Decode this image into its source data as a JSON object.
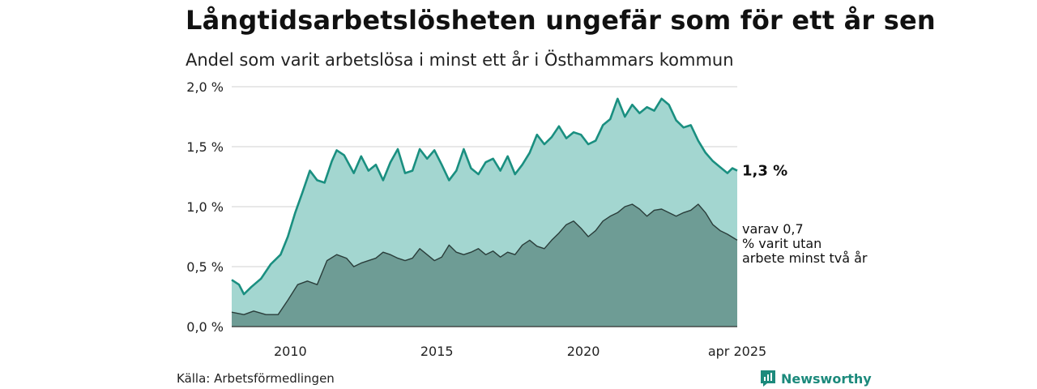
{
  "title": "Långtidsarbetslösheten ungefär som för ett år sen",
  "subtitle": "Andel som varit arbetslösa i minst ett år i Östhammars kommun",
  "source": "Källa: Arbetsförmedlingen",
  "logo_text": "Newsworthy",
  "logo_icon": "bar-chart-icon",
  "colors": {
    "total_fill": "#a3d6d0",
    "total_line": "#1a8f80",
    "sub_fill": "#6e9c95",
    "sub_line": "#2a3d3a",
    "grid": "#d9d9d9",
    "brand": "#1c8a7c"
  },
  "chart_data": {
    "type": "area",
    "title": "",
    "xlabel": "",
    "ylabel": "",
    "x_range": [
      "2008-01",
      "2025-04"
    ],
    "ylim": [
      0,
      2.0
    ],
    "y_ticks": [
      {
        "value": 0.0,
        "label": "0,0 %"
      },
      {
        "value": 0.5,
        "label": "0,5 %"
      },
      {
        "value": 1.0,
        "label": "1,0 %"
      },
      {
        "value": 1.5,
        "label": "1,5 %"
      },
      {
        "value": 2.0,
        "label": "2,0 %"
      }
    ],
    "x_ticks": [
      {
        "value": "2010-01",
        "label": "2010"
      },
      {
        "value": "2015-01",
        "label": "2015"
      },
      {
        "value": "2020-01",
        "label": "2020"
      },
      {
        "value": "2025-04",
        "label": "apr 2025"
      }
    ],
    "grid": true,
    "series": [
      {
        "key": "total",
        "end_label": "1,3 %",
        "points": [
          [
            "2008-01",
            0.39
          ],
          [
            "2008-04",
            0.35
          ],
          [
            "2008-06",
            0.27
          ],
          [
            "2008-09",
            0.33
          ],
          [
            "2009-01",
            0.4
          ],
          [
            "2009-05",
            0.52
          ],
          [
            "2009-09",
            0.6
          ],
          [
            "2009-12",
            0.75
          ],
          [
            "2010-03",
            0.95
          ],
          [
            "2010-06",
            1.12
          ],
          [
            "2010-09",
            1.3
          ],
          [
            "2010-12",
            1.22
          ],
          [
            "2011-03",
            1.2
          ],
          [
            "2011-06",
            1.38
          ],
          [
            "2011-08",
            1.47
          ],
          [
            "2011-11",
            1.43
          ],
          [
            "2012-03",
            1.28
          ],
          [
            "2012-06",
            1.42
          ],
          [
            "2012-09",
            1.3
          ],
          [
            "2012-12",
            1.35
          ],
          [
            "2013-03",
            1.22
          ],
          [
            "2013-06",
            1.37
          ],
          [
            "2013-09",
            1.48
          ],
          [
            "2013-12",
            1.28
          ],
          [
            "2014-03",
            1.3
          ],
          [
            "2014-06",
            1.48
          ],
          [
            "2014-09",
            1.4
          ],
          [
            "2014-12",
            1.47
          ],
          [
            "2015-03",
            1.35
          ],
          [
            "2015-06",
            1.22
          ],
          [
            "2015-09",
            1.3
          ],
          [
            "2015-12",
            1.48
          ],
          [
            "2016-03",
            1.32
          ],
          [
            "2016-06",
            1.27
          ],
          [
            "2016-09",
            1.37
          ],
          [
            "2016-12",
            1.4
          ],
          [
            "2017-03",
            1.3
          ],
          [
            "2017-06",
            1.42
          ],
          [
            "2017-09",
            1.27
          ],
          [
            "2017-12",
            1.35
          ],
          [
            "2018-03",
            1.45
          ],
          [
            "2018-06",
            1.6
          ],
          [
            "2018-09",
            1.52
          ],
          [
            "2018-12",
            1.58
          ],
          [
            "2019-03",
            1.67
          ],
          [
            "2019-06",
            1.57
          ],
          [
            "2019-09",
            1.62
          ],
          [
            "2019-12",
            1.6
          ],
          [
            "2020-03",
            1.52
          ],
          [
            "2020-06",
            1.55
          ],
          [
            "2020-09",
            1.68
          ],
          [
            "2020-12",
            1.73
          ],
          [
            "2021-03",
            1.9
          ],
          [
            "2021-06",
            1.75
          ],
          [
            "2021-09",
            1.85
          ],
          [
            "2021-12",
            1.78
          ],
          [
            "2022-03",
            1.83
          ],
          [
            "2022-06",
            1.8
          ],
          [
            "2022-09",
            1.9
          ],
          [
            "2022-12",
            1.85
          ],
          [
            "2023-03",
            1.72
          ],
          [
            "2023-06",
            1.66
          ],
          [
            "2023-09",
            1.68
          ],
          [
            "2023-12",
            1.55
          ],
          [
            "2024-03",
            1.45
          ],
          [
            "2024-06",
            1.38
          ],
          [
            "2024-09",
            1.33
          ],
          [
            "2024-12",
            1.28
          ],
          [
            "2025-02",
            1.32
          ],
          [
            "2025-04",
            1.3
          ]
        ]
      },
      {
        "key": "sub",
        "end_label": "varav 0,7 % varit utan arbete minst två år",
        "points": [
          [
            "2008-01",
            0.12
          ],
          [
            "2008-06",
            0.1
          ],
          [
            "2008-10",
            0.13
          ],
          [
            "2009-03",
            0.1
          ],
          [
            "2009-08",
            0.1
          ],
          [
            "2009-12",
            0.22
          ],
          [
            "2010-04",
            0.35
          ],
          [
            "2010-08",
            0.38
          ],
          [
            "2010-12",
            0.35
          ],
          [
            "2011-04",
            0.55
          ],
          [
            "2011-08",
            0.6
          ],
          [
            "2011-12",
            0.57
          ],
          [
            "2012-03",
            0.5
          ],
          [
            "2012-06",
            0.53
          ],
          [
            "2012-09",
            0.55
          ],
          [
            "2012-12",
            0.57
          ],
          [
            "2013-03",
            0.62
          ],
          [
            "2013-06",
            0.6
          ],
          [
            "2013-09",
            0.57
          ],
          [
            "2013-12",
            0.55
          ],
          [
            "2014-03",
            0.57
          ],
          [
            "2014-06",
            0.65
          ],
          [
            "2014-09",
            0.6
          ],
          [
            "2014-12",
            0.55
          ],
          [
            "2015-03",
            0.58
          ],
          [
            "2015-06",
            0.68
          ],
          [
            "2015-09",
            0.62
          ],
          [
            "2015-12",
            0.6
          ],
          [
            "2016-03",
            0.62
          ],
          [
            "2016-06",
            0.65
          ],
          [
            "2016-09",
            0.6
          ],
          [
            "2016-12",
            0.63
          ],
          [
            "2017-03",
            0.58
          ],
          [
            "2017-06",
            0.62
          ],
          [
            "2017-09",
            0.6
          ],
          [
            "2017-12",
            0.68
          ],
          [
            "2018-03",
            0.72
          ],
          [
            "2018-06",
            0.67
          ],
          [
            "2018-09",
            0.65
          ],
          [
            "2018-12",
            0.72
          ],
          [
            "2019-03",
            0.78
          ],
          [
            "2019-06",
            0.85
          ],
          [
            "2019-09",
            0.88
          ],
          [
            "2019-12",
            0.82
          ],
          [
            "2020-03",
            0.75
          ],
          [
            "2020-06",
            0.8
          ],
          [
            "2020-09",
            0.88
          ],
          [
            "2020-12",
            0.92
          ],
          [
            "2021-03",
            0.95
          ],
          [
            "2021-06",
            1.0
          ],
          [
            "2021-09",
            1.02
          ],
          [
            "2021-12",
            0.98
          ],
          [
            "2022-03",
            0.92
          ],
          [
            "2022-06",
            0.97
          ],
          [
            "2022-09",
            0.98
          ],
          [
            "2022-12",
            0.95
          ],
          [
            "2023-03",
            0.92
          ],
          [
            "2023-06",
            0.95
          ],
          [
            "2023-09",
            0.97
          ],
          [
            "2023-12",
            1.02
          ],
          [
            "2024-03",
            0.95
          ],
          [
            "2024-06",
            0.85
          ],
          [
            "2024-09",
            0.8
          ],
          [
            "2024-12",
            0.77
          ],
          [
            "2025-04",
            0.72
          ]
        ]
      }
    ]
  }
}
